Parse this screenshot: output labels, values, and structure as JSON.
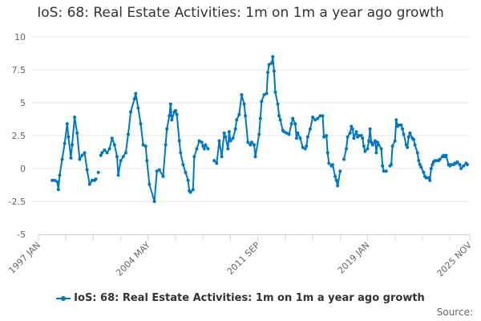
{
  "chart_data": {
    "type": "line",
    "title": "IoS: 68: Real Estate Activities: 1m on 1m a year ago growth",
    "xlabel": "",
    "ylabel": "",
    "ylim": [
      -5,
      10
    ],
    "yticks": [
      -5,
      -2.5,
      0,
      2.5,
      5,
      7.5,
      10
    ],
    "ytick_labels": [
      "-5",
      "-2.5",
      "0",
      "2.5",
      "5",
      "7.5",
      "10"
    ],
    "xlim": [
      "1997-01",
      "2025-11"
    ],
    "xtick_labels": [
      "1997 JAN",
      "2004 MAY",
      "2011 SEP",
      "2019 JAN",
      "2025 NOV"
    ],
    "xtick_dates": [
      "1997-01",
      "2004-05",
      "2011-09",
      "2019-01",
      "2025-11"
    ],
    "grid": true,
    "legend_position": "bottom",
    "color": "#0077c0",
    "series": [
      {
        "name": "IoS: 68: Real Estate Activities: 1m on 1m a year ago growth",
        "points": [
          [
            "1997-12",
            -0.9
          ],
          [
            "1998-02",
            -0.9
          ],
          [
            "1998-04",
            -1.0
          ],
          [
            "1998-05",
            -1.6
          ],
          [
            "1998-06",
            -0.5
          ],
          [
            "1998-08",
            0.7
          ],
          [
            "1998-10",
            1.9
          ],
          [
            "1998-12",
            3.4
          ],
          [
            "1999-01",
            2.4
          ],
          [
            "1999-03",
            0.8
          ],
          [
            "1999-04",
            1.8
          ],
          [
            "1999-06",
            3.9
          ],
          [
            "1999-08",
            2.7
          ],
          [
            "1999-10",
            0.7
          ],
          [
            "1999-12",
            1.0
          ],
          [
            "2000-02",
            1.2
          ],
          [
            "2000-04",
            -0.1
          ],
          [
            "2000-06",
            -1.2
          ],
          [
            "2000-08",
            -0.9
          ],
          [
            "2000-10",
            -0.9
          ],
          [
            "2000-11",
            -0.8
          ],
          [
            "2000-12",
            null
          ],
          [
            "2001-01",
            -0.3
          ],
          [
            "2001-02",
            null
          ],
          [
            "2001-03",
            1.0
          ],
          [
            "2001-04",
            1.2
          ],
          [
            "2001-06",
            1.4
          ],
          [
            "2001-08",
            1.2
          ],
          [
            "2001-10",
            1.5
          ],
          [
            "2001-12",
            2.3
          ],
          [
            "2002-02",
            1.8
          ],
          [
            "2002-04",
            0.9
          ],
          [
            "2002-05",
            -0.5
          ],
          [
            "2002-07",
            0.6
          ],
          [
            "2002-09",
            0.9
          ],
          [
            "2002-11",
            1.2
          ],
          [
            "2003-01",
            2.6
          ],
          [
            "2003-03",
            4.3
          ],
          [
            "2003-06",
            5.3
          ],
          [
            "2003-07",
            5.7
          ],
          [
            "2003-09",
            4.6
          ],
          [
            "2003-11",
            3.4
          ],
          [
            "2004-01",
            1.8
          ],
          [
            "2004-03",
            1.7
          ],
          [
            "2004-04",
            0.6
          ],
          [
            "2004-06",
            -1.2
          ],
          [
            "2004-10",
            -2.5
          ],
          [
            "2004-12",
            -0.2
          ],
          [
            "2005-02",
            -0.1
          ],
          [
            "2005-05",
            -0.6
          ],
          [
            "2005-07",
            1.8
          ],
          [
            "2005-08",
            3.0
          ],
          [
            "2005-10",
            4.0
          ],
          [
            "2005-11",
            4.9
          ],
          [
            "2005-12",
            3.7
          ],
          [
            "2006-02",
            4.3
          ],
          [
            "2006-03",
            4.4
          ],
          [
            "2006-04",
            4.1
          ],
          [
            "2006-06",
            2.1
          ],
          [
            "2006-07",
            1.2
          ],
          [
            "2006-09",
            0.3
          ],
          [
            "2006-11",
            -0.3
          ],
          [
            "2007-01",
            -0.9
          ],
          [
            "2007-02",
            -1.7
          ],
          [
            "2007-03",
            -1.8
          ],
          [
            "2007-05",
            -1.6
          ],
          [
            "2007-06",
            0.9
          ],
          [
            "2007-08",
            1.5
          ],
          [
            "2007-10",
            2.1
          ],
          [
            "2007-12",
            2.0
          ],
          [
            "2008-01",
            1.7
          ],
          [
            "2008-02",
            1.5
          ],
          [
            "2008-03",
            1.8
          ],
          [
            "2008-05",
            1.5
          ],
          [
            "2008-07",
            null
          ],
          [
            "2008-10",
            0.6
          ],
          [
            "2008-12",
            0.4
          ],
          [
            "2009-02",
            2.1
          ],
          [
            "2009-04",
            0.9
          ],
          [
            "2009-06",
            2.7
          ],
          [
            "2009-07",
            2.4
          ],
          [
            "2009-09",
            1.5
          ],
          [
            "2009-10",
            2.8
          ],
          [
            "2009-11",
            2.1
          ],
          [
            "2010-01",
            2.3
          ],
          [
            "2010-03",
            3.0
          ],
          [
            "2010-04",
            3.7
          ],
          [
            "2010-06",
            4.1
          ],
          [
            "2010-08",
            5.6
          ],
          [
            "2010-10",
            4.9
          ],
          [
            "2010-11",
            4.0
          ],
          [
            "2011-01",
            2.0
          ],
          [
            "2011-03",
            1.8
          ],
          [
            "2011-04",
            2.0
          ],
          [
            "2011-06",
            1.8
          ],
          [
            "2011-07",
            0.9
          ],
          [
            "2011-10",
            2.6
          ],
          [
            "2011-11",
            3.8
          ],
          [
            "2011-12",
            5.1
          ],
          [
            "2012-02",
            5.6
          ],
          [
            "2012-04",
            5.7
          ],
          [
            "2012-05",
            7.3
          ],
          [
            "2012-06",
            7.9
          ],
          [
            "2012-08",
            8.0
          ],
          [
            "2012-09",
            8.5
          ],
          [
            "2012-10",
            7.4
          ],
          [
            "2012-11",
            5.8
          ],
          [
            "2013-01",
            4.9
          ],
          [
            "2013-02",
            4.0
          ],
          [
            "2013-03",
            3.7
          ],
          [
            "2013-05",
            2.9
          ],
          [
            "2013-06",
            2.8
          ],
          [
            "2013-08",
            2.7
          ],
          [
            "2013-10",
            2.6
          ],
          [
            "2013-12",
            3.4
          ],
          [
            "2014-01",
            3.8
          ],
          [
            "2014-03",
            3.4
          ],
          [
            "2014-04",
            2.3
          ],
          [
            "2014-05",
            2.7
          ],
          [
            "2014-07",
            2.3
          ],
          [
            "2014-09",
            1.6
          ],
          [
            "2014-11",
            1.5
          ],
          [
            "2014-12",
            1.7
          ],
          [
            "2015-01",
            2.4
          ],
          [
            "2015-03",
            3.0
          ],
          [
            "2015-05",
            3.9
          ],
          [
            "2015-07",
            3.7
          ],
          [
            "2015-09",
            3.8
          ],
          [
            "2015-11",
            4.0
          ],
          [
            "2016-01",
            4.0
          ],
          [
            "2016-02",
            2.4
          ],
          [
            "2016-04",
            2.5
          ],
          [
            "2016-05",
            1.2
          ],
          [
            "2016-06",
            0.4
          ],
          [
            "2016-08",
            0.2
          ],
          [
            "2016-09",
            0.3
          ],
          [
            "2016-11",
            -0.6
          ],
          [
            "2016-12",
            -0.9
          ],
          [
            "2017-01",
            -1.3
          ],
          [
            "2017-03",
            -0.2
          ],
          [
            "2017-04",
            null
          ],
          [
            "2017-06",
            0.7
          ],
          [
            "2017-08",
            1.5
          ],
          [
            "2017-09",
            2.4
          ],
          [
            "2017-11",
            2.7
          ],
          [
            "2017-12",
            3.2
          ],
          [
            "2018-01",
            3.0
          ],
          [
            "2018-02",
            2.3
          ],
          [
            "2018-04",
            2.8
          ],
          [
            "2018-05",
            2.4
          ],
          [
            "2018-06",
            2.5
          ],
          [
            "2018-08",
            2.5
          ],
          [
            "2018-09",
            2.3
          ],
          [
            "2018-10",
            1.7
          ],
          [
            "2018-11",
            1.3
          ],
          [
            "2019-01",
            1.5
          ],
          [
            "2019-02",
            2.1
          ],
          [
            "2019-03",
            3.0
          ],
          [
            "2019-04",
            2.0
          ],
          [
            "2019-05",
            1.8
          ],
          [
            "2019-07",
            2.1
          ],
          [
            "2019-08",
            1.2
          ],
          [
            "2019-09",
            2.0
          ],
          [
            "2019-10",
            1.8
          ],
          [
            "2019-12",
            1.5
          ],
          [
            "2020-01",
            0.2
          ],
          [
            "2020-02",
            -0.2
          ],
          [
            "2020-04",
            -0.2
          ],
          [
            "2020-05",
            null
          ],
          [
            "2020-07",
            0.2
          ],
          [
            "2020-08",
            0.3
          ],
          [
            "2020-09",
            1.7
          ],
          [
            "2020-11",
            2.1
          ],
          [
            "2020-12",
            3.7
          ],
          [
            "2021-01",
            3.2
          ],
          [
            "2021-02",
            3.3
          ],
          [
            "2021-04",
            3.3
          ],
          [
            "2021-05",
            3.0
          ],
          [
            "2021-06",
            2.6
          ],
          [
            "2021-08",
            1.8
          ],
          [
            "2021-09",
            1.6
          ],
          [
            "2021-10",
            2.4
          ],
          [
            "2021-11",
            2.7
          ],
          [
            "2022-01",
            2.3
          ],
          [
            "2022-02",
            2.2
          ],
          [
            "2022-03",
            1.8
          ],
          [
            "2022-05",
            1.2
          ],
          [
            "2022-06",
            0.6
          ],
          [
            "2022-07",
            0.3
          ],
          [
            "2022-08",
            0.1
          ],
          [
            "2022-10",
            -0.3
          ],
          [
            "2022-11",
            -0.6
          ],
          [
            "2022-12",
            -0.7
          ],
          [
            "2023-02",
            -0.7
          ],
          [
            "2023-03",
            -0.9
          ],
          [
            "2023-04",
            0.0
          ],
          [
            "2023-05",
            0.3
          ],
          [
            "2023-06",
            0.5
          ],
          [
            "2023-07",
            0.6
          ],
          [
            "2023-09",
            0.6
          ],
          [
            "2023-10",
            0.6
          ],
          [
            "2023-11",
            0.7
          ],
          [
            "2024-01",
            0.9
          ],
          [
            "2024-02",
            1.0
          ],
          [
            "2024-03",
            0.9
          ],
          [
            "2024-04",
            1.0
          ],
          [
            "2024-06",
            0.3
          ],
          [
            "2024-07",
            0.2
          ],
          [
            "2024-08",
            0.3
          ],
          [
            "2024-10",
            0.3
          ],
          [
            "2024-11",
            0.4
          ],
          [
            "2024-12",
            0.4
          ],
          [
            "2025-01",
            0.5
          ],
          [
            "2025-03",
            0.3
          ],
          [
            "2025-04",
            0.0
          ],
          [
            "2025-06",
            0.2
          ],
          [
            "2025-08",
            0.4
          ],
          [
            "2025-09",
            0.3
          ]
        ]
      }
    ]
  },
  "legend": {
    "label": "IoS: 68: Real Estate Activities: 1m on 1m a year ago growth"
  },
  "source": {
    "label": "Source:"
  }
}
